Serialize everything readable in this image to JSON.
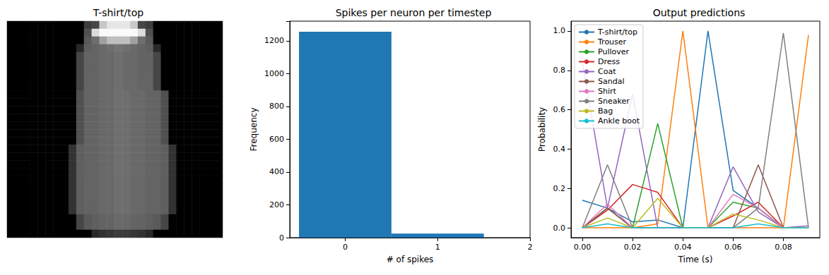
{
  "chart_data": [
    {
      "type": "image",
      "title": "T-shirt/top",
      "tick_labels": false,
      "color_range": [
        0,
        255
      ],
      "pixels": [
        [
          0,
          0,
          0,
          0,
          0,
          0,
          0,
          0,
          0,
          0,
          60,
          70,
          200,
          230,
          230,
          230,
          200,
          70,
          60,
          0,
          0,
          0,
          0,
          0,
          0,
          0,
          0,
          0
        ],
        [
          0,
          0,
          0,
          0,
          0,
          0,
          0,
          0,
          0,
          0,
          80,
          220,
          250,
          250,
          250,
          250,
          250,
          220,
          80,
          0,
          0,
          0,
          0,
          0,
          0,
          0,
          0,
          0
        ],
        [
          0,
          0,
          0,
          0,
          0,
          0,
          0,
          0,
          0,
          0,
          90,
          110,
          160,
          190,
          190,
          190,
          160,
          110,
          90,
          0,
          0,
          0,
          0,
          0,
          0,
          0,
          0,
          0
        ],
        [
          0,
          0,
          0,
          0,
          0,
          0,
          0,
          0,
          0,
          40,
          95,
          100,
          105,
          110,
          115,
          110,
          105,
          100,
          95,
          40,
          0,
          0,
          0,
          0,
          0,
          0,
          0,
          0
        ],
        [
          0,
          0,
          0,
          0,
          0,
          0,
          0,
          0,
          0,
          70,
          100,
          100,
          105,
          105,
          110,
          105,
          105,
          100,
          100,
          70,
          0,
          0,
          0,
          0,
          0,
          0,
          0,
          0
        ],
        [
          0,
          0,
          0,
          0,
          0,
          0,
          0,
          0,
          0,
          70,
          100,
          100,
          105,
          105,
          110,
          105,
          105,
          100,
          100,
          70,
          0,
          0,
          0,
          0,
          0,
          0,
          0,
          0
        ],
        [
          0,
          0,
          0,
          0,
          0,
          0,
          0,
          0,
          0,
          70,
          100,
          100,
          105,
          105,
          110,
          105,
          105,
          100,
          100,
          70,
          0,
          0,
          0,
          0,
          0,
          0,
          0,
          0
        ],
        [
          0,
          0,
          0,
          0,
          0,
          0,
          0,
          0,
          0,
          70,
          100,
          100,
          105,
          105,
          110,
          105,
          105,
          100,
          100,
          70,
          0,
          0,
          0,
          0,
          0,
          0,
          0,
          0
        ],
        [
          0,
          0,
          0,
          0,
          0,
          0,
          0,
          0,
          0,
          70,
          100,
          100,
          105,
          105,
          110,
          105,
          105,
          100,
          100,
          70,
          0,
          0,
          0,
          0,
          0,
          0,
          0,
          0
        ],
        [
          0,
          0,
          0,
          0,
          0,
          0,
          0,
          0,
          0,
          80,
          100,
          100,
          105,
          105,
          110,
          110,
          105,
          105,
          100,
          100,
          80,
          0,
          0,
          0,
          0,
          0,
          0,
          0
        ],
        [
          0,
          0,
          0,
          0,
          0,
          0,
          0,
          0,
          0,
          80,
          100,
          100,
          105,
          105,
          110,
          110,
          105,
          105,
          100,
          100,
          80,
          0,
          0,
          0,
          0,
          0,
          0,
          0
        ],
        [
          0,
          0,
          0,
          0,
          0,
          0,
          0,
          0,
          0,
          80,
          100,
          100,
          105,
          105,
          110,
          110,
          105,
          105,
          100,
          100,
          80,
          0,
          0,
          0,
          0,
          0,
          0,
          0
        ],
        [
          0,
          0,
          0,
          0,
          0,
          0,
          0,
          0,
          0,
          80,
          100,
          100,
          105,
          105,
          110,
          110,
          105,
          105,
          100,
          100,
          80,
          0,
          0,
          0,
          0,
          0,
          0,
          0
        ],
        [
          0,
          0,
          0,
          0,
          0,
          0,
          0,
          0,
          0,
          80,
          100,
          100,
          105,
          105,
          110,
          110,
          105,
          105,
          100,
          100,
          80,
          0,
          0,
          0,
          0,
          0,
          0,
          0
        ],
        [
          0,
          0,
          0,
          0,
          0,
          0,
          0,
          0,
          0,
          80,
          100,
          100,
          105,
          105,
          110,
          110,
          105,
          105,
          100,
          100,
          80,
          0,
          0,
          0,
          0,
          0,
          0,
          0
        ],
        [
          0,
          0,
          0,
          0,
          0,
          0,
          0,
          0,
          0,
          80,
          100,
          100,
          105,
          105,
          110,
          110,
          105,
          105,
          100,
          100,
          80,
          0,
          0,
          0,
          0,
          0,
          0,
          0
        ],
        [
          0,
          0,
          0,
          0,
          0,
          0,
          0,
          0,
          50,
          95,
          100,
          100,
          105,
          105,
          110,
          110,
          105,
          105,
          100,
          100,
          95,
          50,
          0,
          0,
          0,
          0,
          0,
          0
        ],
        [
          0,
          0,
          0,
          0,
          0,
          0,
          0,
          0,
          50,
          95,
          100,
          100,
          105,
          105,
          110,
          110,
          105,
          105,
          100,
          100,
          95,
          50,
          0,
          0,
          0,
          0,
          0,
          0
        ],
        [
          0,
          0,
          0,
          0,
          0,
          0,
          0,
          0,
          50,
          95,
          100,
          100,
          105,
          105,
          110,
          110,
          105,
          105,
          100,
          100,
          95,
          50,
          0,
          0,
          0,
          0,
          0,
          0
        ],
        [
          0,
          0,
          0,
          0,
          0,
          0,
          0,
          0,
          50,
          95,
          100,
          100,
          105,
          105,
          110,
          110,
          105,
          105,
          100,
          100,
          95,
          50,
          0,
          0,
          0,
          0,
          0,
          0
        ],
        [
          0,
          0,
          0,
          0,
          0,
          0,
          0,
          0,
          50,
          95,
          100,
          100,
          105,
          105,
          110,
          110,
          105,
          105,
          100,
          100,
          95,
          50,
          0,
          0,
          0,
          0,
          0,
          0
        ],
        [
          0,
          0,
          0,
          0,
          0,
          0,
          0,
          0,
          50,
          95,
          100,
          100,
          105,
          105,
          110,
          110,
          105,
          105,
          100,
          100,
          95,
          50,
          0,
          0,
          0,
          0,
          0,
          0
        ],
        [
          0,
          0,
          0,
          0,
          0,
          0,
          0,
          0,
          50,
          95,
          100,
          100,
          105,
          105,
          110,
          110,
          105,
          105,
          100,
          100,
          95,
          50,
          0,
          0,
          0,
          0,
          0,
          0
        ],
        [
          0,
          0,
          0,
          0,
          0,
          0,
          0,
          0,
          50,
          95,
          100,
          100,
          105,
          105,
          110,
          110,
          105,
          105,
          100,
          100,
          95,
          50,
          0,
          0,
          0,
          0,
          0,
          0
        ],
        [
          0,
          0,
          0,
          0,
          0,
          0,
          0,
          0,
          50,
          95,
          100,
          100,
          105,
          105,
          110,
          110,
          105,
          105,
          100,
          100,
          95,
          50,
          0,
          0,
          0,
          0,
          0,
          0
        ],
        [
          0,
          0,
          0,
          0,
          0,
          0,
          0,
          0,
          0,
          70,
          90,
          95,
          100,
          100,
          105,
          105,
          100,
          100,
          95,
          90,
          70,
          0,
          0,
          0,
          0,
          0,
          0,
          0
        ],
        [
          0,
          0,
          0,
          0,
          0,
          0,
          0,
          0,
          0,
          70,
          90,
          95,
          100,
          100,
          105,
          105,
          100,
          100,
          95,
          90,
          70,
          0,
          0,
          0,
          0,
          0,
          0,
          0
        ],
        [
          0,
          0,
          0,
          0,
          0,
          0,
          0,
          0,
          0,
          0,
          0,
          40,
          50,
          55,
          60,
          60,
          55,
          50,
          40,
          0,
          0,
          0,
          0,
          0,
          0,
          0,
          0,
          0
        ]
      ]
    },
    {
      "type": "histogram",
      "title": "Spikes per neuron per timestep",
      "x_label": "# of spikes",
      "y_label": "Frequency",
      "bins": [
        -0.5,
        0.5,
        1.5
      ],
      "counts": [
        1255,
        25
      ],
      "color": "#1f77b4",
      "xlim": [
        -0.6,
        2.0
      ],
      "xticks": [
        0,
        1,
        2
      ],
      "ylim": [
        0,
        1320
      ],
      "yticks": [
        0,
        200,
        400,
        600,
        800,
        1000,
        1200
      ]
    },
    {
      "type": "line",
      "title": "Output predictions",
      "x_label": "Time (s)",
      "y_label": "Probability",
      "legend": "upper left",
      "x": [
        0,
        0.01,
        0.02,
        0.03,
        0.04,
        0.05,
        0.06,
        0.07,
        0.08,
        0.09
      ],
      "xlim": [
        -0.0045,
        0.0945
      ],
      "xticks": [
        {
          "value": 0,
          "label": "0.00"
        },
        {
          "value": 0.02,
          "label": "0.02"
        },
        {
          "value": 0.04,
          "label": "0.04"
        },
        {
          "value": 0.06,
          "label": "0.06"
        },
        {
          "value": 0.08,
          "label": "0.08"
        }
      ],
      "ylim": [
        -0.05,
        1.05
      ],
      "yticks": [
        {
          "value": 0,
          "label": "0.0"
        },
        {
          "value": 0.2,
          "label": "0.2"
        },
        {
          "value": 0.4,
          "label": "0.4"
        },
        {
          "value": 0.6,
          "label": "0.6"
        },
        {
          "value": 0.8,
          "label": "0.8"
        },
        {
          "value": 1,
          "label": "1.0"
        }
      ],
      "series": [
        {
          "name": "T-shirt/top",
          "color": "#1f77b4",
          "values": [
            0.14,
            0.1,
            0.03,
            0.04,
            0.0,
            1.0,
            0.19,
            0.1,
            0.0,
            0.0
          ]
        },
        {
          "name": "Trouser",
          "color": "#ff7f0e",
          "values": [
            0.0,
            0.0,
            0.0,
            0.02,
            1.0,
            0.0,
            0.0,
            0.0,
            0.0,
            0.98
          ]
        },
        {
          "name": "Pullover",
          "color": "#2ca02c",
          "values": [
            0.0,
            0.1,
            0.0,
            0.53,
            0.0,
            0.0,
            0.13,
            0.1,
            0.0,
            0.0
          ]
        },
        {
          "name": "Dress",
          "color": "#d62728",
          "values": [
            0.0,
            0.09,
            0.22,
            0.18,
            0.0,
            0.0,
            0.06,
            0.13,
            0.0,
            0.0
          ]
        },
        {
          "name": "Coat",
          "color": "#9467bd",
          "values": [
            0.84,
            0.1,
            0.68,
            0.0,
            0.0,
            0.0,
            0.31,
            0.08,
            0.0,
            0.01
          ]
        },
        {
          "name": "Sandal",
          "color": "#8c564b",
          "values": [
            0.0,
            0.1,
            0.0,
            0.0,
            0.0,
            0.0,
            0.0,
            0.32,
            0.0,
            0.0
          ]
        },
        {
          "name": "Shirt",
          "color": "#e377c2",
          "values": [
            0.0,
            0.12,
            0.0,
            0.0,
            0.0,
            0.0,
            0.17,
            0.1,
            0.0,
            0.0
          ]
        },
        {
          "name": "Sneaker",
          "color": "#7f7f7f",
          "values": [
            0.0,
            0.32,
            0.0,
            0.0,
            0.0,
            0.0,
            0.0,
            0.1,
            0.99,
            0.0
          ]
        },
        {
          "name": "Bag",
          "color": "#bcbd22",
          "values": [
            0.0,
            0.05,
            0.0,
            0.15,
            0.0,
            0.0,
            0.07,
            0.04,
            0.0,
            0.0
          ]
        },
        {
          "name": "Ankle boot",
          "color": "#17becf",
          "values": [
            0.0,
            0.02,
            0.0,
            0.0,
            0.0,
            0.0,
            0.0,
            0.02,
            0.0,
            0.0
          ]
        }
      ]
    }
  ]
}
